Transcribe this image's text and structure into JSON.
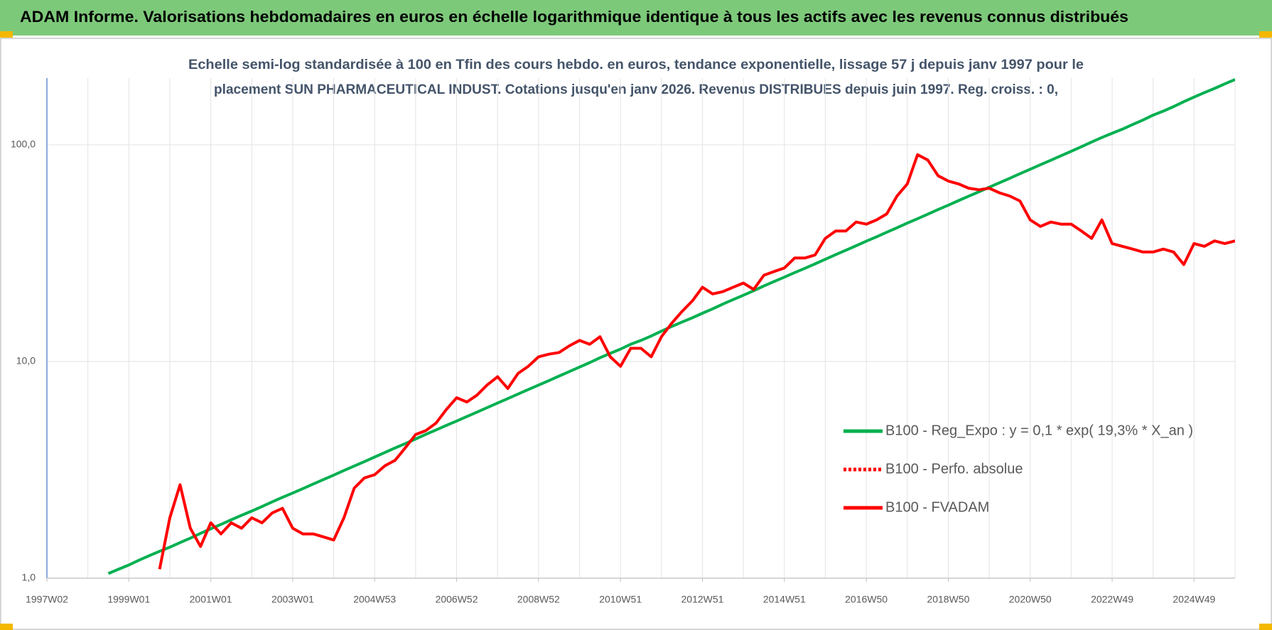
{
  "chart_data": {
    "type": "line",
    "title": "ADAM Informe. Valorisations hebdomadaires en euros en échelle logarithmique identique à tous les actifs avec les revenus connus distribués",
    "subtitle": [
      "Echelle semi-log standardisée à 100 en Tfin des cours hebdo. en euros, tendance exponentielle, lissage 57 j depuis janv 1997 pour le",
      "placement SUN PHARMACEUTICAL INDUST. Cotations jusqu'en janv 2026. Revenus DISTRIBUES depuis juin 1997. Reg. croiss. : 0,"
    ],
    "log_scale": true,
    "grid": true,
    "legend": "right",
    "ylim": [
      1,
      203
    ],
    "yticks": [
      {
        "value": 1,
        "label": "1,0"
      },
      {
        "value": 10,
        "label": "10,0"
      },
      {
        "value": 100,
        "label": "100,0"
      }
    ],
    "categories": [
      "1997W02",
      null,
      null,
      null,
      null,
      null,
      null,
      null,
      "1999W01",
      null,
      null,
      null,
      null,
      null,
      null,
      null,
      "2001W01",
      null,
      null,
      null,
      null,
      null,
      null,
      null,
      "2003W01",
      null,
      null,
      null,
      null,
      null,
      null,
      null,
      "2004W53",
      null,
      null,
      null,
      null,
      null,
      null,
      null,
      "2006W52",
      null,
      null,
      null,
      null,
      null,
      null,
      null,
      "2008W52",
      null,
      null,
      null,
      null,
      null,
      null,
      null,
      "2010W51",
      null,
      null,
      null,
      null,
      null,
      null,
      null,
      "2012W51",
      null,
      null,
      null,
      null,
      null,
      null,
      null,
      "2014W51",
      null,
      null,
      null,
      null,
      null,
      null,
      null,
      "2016W50",
      null,
      null,
      null,
      null,
      null,
      null,
      null,
      "2018W50",
      null,
      null,
      null,
      null,
      null,
      null,
      null,
      "2020W50",
      null,
      null,
      null,
      null,
      null,
      null,
      null,
      "2022W49",
      null,
      null,
      null,
      null,
      null,
      null,
      null,
      "2024W49",
      null,
      null,
      null,
      null
    ],
    "series": [
      {
        "name": "B100 - Reg_Expo : y = 0,1 * exp( 19,3% *  X_an )",
        "color": "#00b050",
        "style": "solid",
        "values": [
          null,
          null,
          null,
          null,
          null,
          null,
          1.05,
          1.1,
          1.15,
          1.21,
          1.27,
          1.33,
          1.39,
          1.46,
          1.53,
          1.61,
          1.69,
          1.77,
          1.86,
          1.95,
          2.04,
          2.14,
          2.25,
          2.36,
          2.47,
          2.59,
          2.72,
          2.85,
          2.99,
          3.14,
          3.29,
          3.45,
          3.62,
          3.8,
          3.99,
          4.18,
          4.39,
          4.61,
          4.83,
          5.07,
          5.31,
          5.57,
          5.84,
          6.13,
          6.43,
          6.74,
          7.07,
          7.42,
          7.78,
          8.16,
          8.56,
          8.98,
          9.42,
          9.88,
          10.4,
          10.9,
          11.4,
          12.0,
          12.5,
          13.1,
          13.8,
          14.5,
          15.2,
          15.9,
          16.7,
          17.5,
          18.4,
          19.3,
          20.2,
          21.2,
          22.3,
          23.4,
          24.5,
          25.7,
          26.9,
          28.2,
          29.6,
          31.1,
          32.6,
          34.2,
          35.9,
          37.6,
          39.5,
          41.4,
          43.5,
          45.6,
          47.8,
          50.2,
          52.6,
          55.2,
          57.9,
          60.7,
          63.7,
          66.8,
          70.0,
          73.5,
          77.1,
          80.9,
          84.8,
          89.0,
          93.3,
          97.9,
          103,
          108,
          113,
          118,
          124,
          130,
          137,
          143,
          150,
          158,
          166,
          174,
          182,
          191,
          200
        ]
      },
      {
        "name": "B100 - Perfo. absolue",
        "color": "#ff0000",
        "style": "dotted",
        "values": [
          null,
          null,
          null,
          null,
          null,
          null,
          null,
          null,
          null,
          null,
          null,
          null,
          null,
          null,
          null,
          null,
          null,
          null,
          null,
          null,
          null,
          null,
          null,
          null,
          null,
          null,
          null,
          null,
          null,
          null,
          null,
          null,
          null,
          null,
          null,
          null,
          null,
          null,
          null,
          null,
          null,
          null,
          null,
          null,
          null,
          null,
          null,
          null,
          null,
          null,
          null,
          null,
          null,
          null,
          null,
          null,
          null,
          null,
          null,
          null,
          null,
          null,
          null,
          null,
          null,
          null,
          null,
          null,
          null,
          null,
          null,
          null,
          null,
          null,
          null,
          null,
          null,
          null,
          null,
          null,
          null,
          null,
          null,
          null,
          null,
          null,
          null,
          null,
          null,
          null,
          null,
          null,
          null,
          null,
          null,
          null,
          null,
          null,
          null,
          null,
          null,
          null,
          null,
          null,
          null,
          null,
          null,
          null,
          null,
          null,
          null,
          null,
          null,
          null,
          null,
          null,
          null
        ]
      },
      {
        "name": "B100 - FVADAM",
        "color": "#ff0000",
        "style": "solid",
        "values": [
          null,
          null,
          null,
          null,
          null,
          null,
          null,
          null,
          null,
          null,
          null,
          1.1,
          1.9,
          2.7,
          1.7,
          1.4,
          1.8,
          1.6,
          1.8,
          1.7,
          1.9,
          1.8,
          2.0,
          2.1,
          1.7,
          1.6,
          1.6,
          1.55,
          1.5,
          1.9,
          2.6,
          2.9,
          3.0,
          3.3,
          3.5,
          4.0,
          4.6,
          4.8,
          5.2,
          6.0,
          6.8,
          6.5,
          7.0,
          7.8,
          8.5,
          7.5,
          8.8,
          9.5,
          10.5,
          10.8,
          11.0,
          11.8,
          12.5,
          12.0,
          13.0,
          10.5,
          9.5,
          11.5,
          11.5,
          10.5,
          13.0,
          15.0,
          17.0,
          19.0,
          22.0,
          20.5,
          21.0,
          22.0,
          23.0,
          21.5,
          25.0,
          26.0,
          27.0,
          30.0,
          30.0,
          31.0,
          37.0,
          40.0,
          40.0,
          44.0,
          43.0,
          45.0,
          48.0,
          58.0,
          66.0,
          90.0,
          85.0,
          72.0,
          68.0,
          66.0,
          63.0,
          62.0,
          63.0,
          60.0,
          58.0,
          55.0,
          45.0,
          42.0,
          44.0,
          43.0,
          43.0,
          40.0,
          37.0,
          45.0,
          35.0,
          34.0,
          33.0,
          32.0,
          32.0,
          33.0,
          32.0,
          28.0,
          35.0,
          34.0,
          36.0,
          35.0,
          36.0
        ]
      }
    ]
  }
}
